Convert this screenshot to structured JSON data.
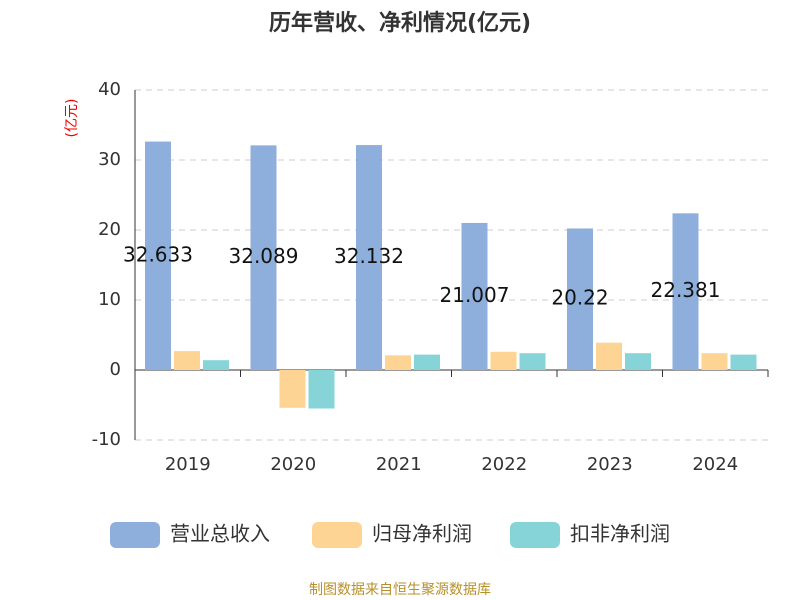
{
  "chart_data": {
    "type": "bar",
    "title": "历年营收、净利情况(亿元)",
    "y_axis_label": "(亿元)",
    "categories": [
      "2019",
      "2020",
      "2021",
      "2022",
      "2023",
      "2024"
    ],
    "series": [
      {
        "name": "营业总收入",
        "color": "#8eaedb",
        "values": [
          32.633,
          32.089,
          32.132,
          21.007,
          20.22,
          22.381
        ],
        "show_labels": true
      },
      {
        "name": "归母净利润",
        "color": "#fdd493",
        "values": [
          2.7,
          -5.4,
          2.1,
          2.6,
          3.9,
          2.4
        ]
      },
      {
        "name": "扣非净利润",
        "color": "#86d4d8",
        "values": [
          1.4,
          -5.5,
          2.2,
          2.4,
          2.4,
          2.2
        ]
      }
    ],
    "ylim": [
      -10,
      40
    ],
    "yticks": [
      -10,
      0,
      10,
      20,
      30,
      40
    ],
    "grid": true,
    "legend": "bottom",
    "source": "制图数据来自恒生聚源数据库"
  }
}
